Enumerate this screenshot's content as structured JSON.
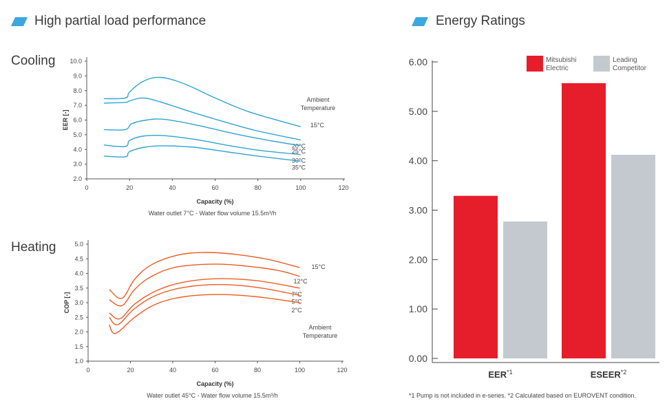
{
  "left_section": {
    "title": "High partial load performance"
  },
  "right_section": {
    "title": "Energy Ratings"
  },
  "colors": {
    "accent": "#3aa8dc",
    "cooling": "#2ea3d4",
    "heating": "#ec5a24",
    "mitsubishi": "#e61d2b",
    "competitor": "#c3c9cf",
    "axis": "#555555"
  },
  "chart_data": [
    {
      "type": "line",
      "name": "Cooling",
      "ylabel": "EER [-]",
      "xlabel": "Capacity (%)",
      "caption": "Water outlet 7°C - Water flow volume 15.5m³/h",
      "legend_title_line1": "Ambient",
      "legend_title_line2": "Temperature",
      "xlim": [
        0,
        120
      ],
      "ylim": [
        2.0,
        10.0
      ],
      "xticks": [
        "0",
        "20",
        "40",
        "60",
        "80",
        "100",
        "120"
      ],
      "yticks": [
        "2.0",
        "3.0",
        "4.0",
        "5.0",
        "6.0",
        "7.0",
        "8.0",
        "9.0",
        "10.0"
      ],
      "series": [
        {
          "name": "15°C",
          "points": [
            [
              8,
              7.45
            ],
            [
              18,
              7.5
            ],
            [
              20,
              7.9
            ],
            [
              26,
              8.6
            ],
            [
              34,
              8.9
            ],
            [
              45,
              8.5
            ],
            [
              60,
              7.5
            ],
            [
              75,
              6.6
            ],
            [
              90,
              5.95
            ],
            [
              100,
              5.55
            ]
          ]
        },
        {
          "name": "20°C",
          "points": [
            [
              8,
              7.15
            ],
            [
              18,
              7.2
            ],
            [
              20,
              7.3
            ],
            [
              26,
              7.5
            ],
            [
              34,
              7.25
            ],
            [
              50,
              6.5
            ],
            [
              65,
              5.85
            ],
            [
              80,
              5.25
            ],
            [
              100,
              4.65
            ]
          ]
        },
        {
          "name": "25°C",
          "points": [
            [
              8,
              5.35
            ],
            [
              18,
              5.35
            ],
            [
              21,
              5.75
            ],
            [
              28,
              6.0
            ],
            [
              36,
              6.05
            ],
            [
              50,
              5.7
            ],
            [
              65,
              5.2
            ],
            [
              80,
              4.75
            ],
            [
              100,
              4.25
            ]
          ]
        },
        {
          "name": "30°C",
          "points": [
            [
              8,
              4.3
            ],
            [
              18,
              4.2
            ],
            [
              20,
              4.6
            ],
            [
              26,
              4.9
            ],
            [
              35,
              4.95
            ],
            [
              50,
              4.7
            ],
            [
              65,
              4.3
            ],
            [
              80,
              3.95
            ],
            [
              100,
              3.65
            ]
          ]
        },
        {
          "name": "35°C",
          "points": [
            [
              8,
              3.55
            ],
            [
              18,
              3.5
            ],
            [
              20,
              3.85
            ],
            [
              27,
              4.15
            ],
            [
              36,
              4.25
            ],
            [
              50,
              4.15
            ],
            [
              65,
              3.85
            ],
            [
              80,
              3.55
            ],
            [
              100,
              3.2
            ]
          ]
        }
      ]
    },
    {
      "type": "line",
      "name": "Heating",
      "ylabel": "COP [-]",
      "xlabel": "Capacity (%)",
      "caption": "Water outlet 45°C - Water flow volume 15.5m³/h",
      "legend_title_line1": "Ambient",
      "legend_title_line2": "Temperature",
      "xlim": [
        0,
        120
      ],
      "ylim": [
        1.0,
        5.0
      ],
      "xticks": [
        "0",
        "20",
        "40",
        "60",
        "80",
        "100",
        "120"
      ],
      "yticks": [
        "1.0",
        "1.5",
        "2.0",
        "2.5",
        "3.0",
        "3.5",
        "4.0",
        "4.5",
        "5.0"
      ],
      "series": [
        {
          "name": "15°C",
          "points": [
            [
              10,
              3.45
            ],
            [
              16,
              3.15
            ],
            [
              22,
              3.8
            ],
            [
              30,
              4.3
            ],
            [
              42,
              4.62
            ],
            [
              55,
              4.72
            ],
            [
              70,
              4.65
            ],
            [
              85,
              4.48
            ],
            [
              100,
              4.2
            ]
          ]
        },
        {
          "name": "12°C",
          "points": [
            [
              10,
              3.1
            ],
            [
              16,
              2.9
            ],
            [
              22,
              3.45
            ],
            [
              30,
              3.9
            ],
            [
              42,
              4.22
            ],
            [
              60,
              4.32
            ],
            [
              75,
              4.25
            ],
            [
              90,
              4.1
            ],
            [
              100,
              3.9
            ]
          ]
        },
        {
          "name": "7°C",
          "points": [
            [
              10,
              2.65
            ],
            [
              15,
              2.45
            ],
            [
              22,
              2.95
            ],
            [
              32,
              3.4
            ],
            [
              45,
              3.7
            ],
            [
              62,
              3.82
            ],
            [
              80,
              3.75
            ],
            [
              100,
              3.5
            ]
          ]
        },
        {
          "name": "5°C",
          "points": [
            [
              10,
              2.5
            ],
            [
              14,
              2.25
            ],
            [
              22,
              2.8
            ],
            [
              32,
              3.25
            ],
            [
              45,
              3.52
            ],
            [
              62,
              3.62
            ],
            [
              80,
              3.52
            ],
            [
              100,
              3.25
            ]
          ]
        },
        {
          "name": "2°C",
          "points": [
            [
              10,
              2.25
            ],
            [
              13,
              1.95
            ],
            [
              22,
              2.5
            ],
            [
              32,
              2.95
            ],
            [
              45,
              3.2
            ],
            [
              62,
              3.28
            ],
            [
              80,
              3.2
            ],
            [
              100,
              3.0
            ]
          ]
        }
      ]
    },
    {
      "type": "bar",
      "categories": [
        "EER",
        "ESEER"
      ],
      "category_marks": [
        "*1",
        "*2"
      ],
      "ylim": [
        0,
        6.0
      ],
      "yticks": [
        "0.00",
        "1.00",
        "2.00",
        "3.00",
        "4.00",
        "5.00",
        "6.00"
      ],
      "series": [
        {
          "name_line1": "Mitsubishi",
          "name_line2": "Electric",
          "values": [
            3.29,
            5.57
          ]
        },
        {
          "name_line1": "Leading",
          "name_line2": "Competitor",
          "values": [
            2.77,
            4.12
          ]
        }
      ],
      "footnote": "*1 Pump is not included in e-series.  *2 Calculated based on EUROVENT condition."
    }
  ]
}
